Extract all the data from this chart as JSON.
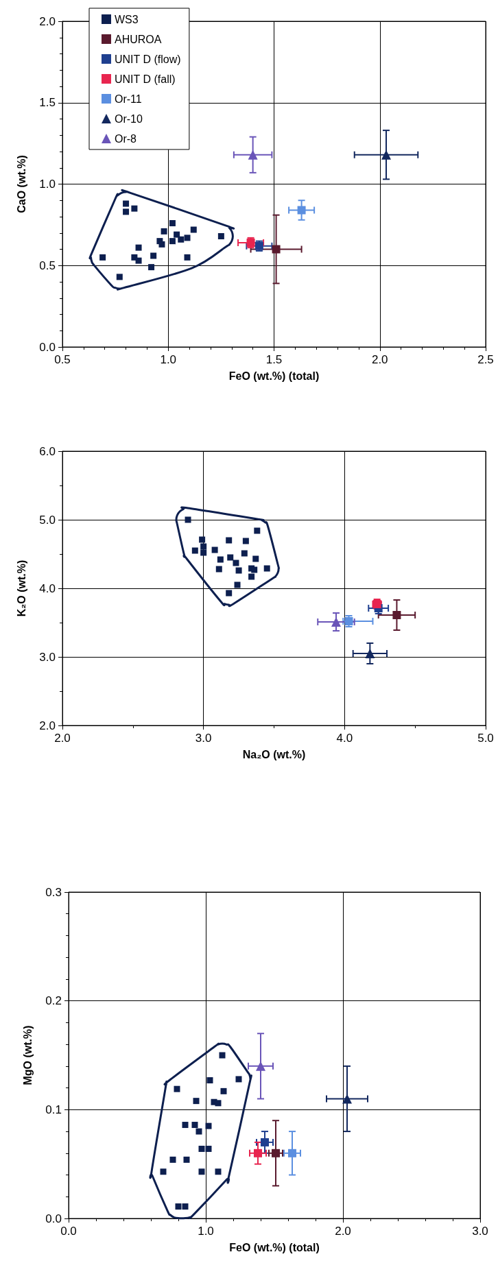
{
  "chart_data": [
    {
      "type": "scatter",
      "xlabel": "FeO (wt.%) (total)",
      "ylabel": "CaO (wt.%)",
      "legend": "top left",
      "grid": true,
      "xlim": [
        0.5,
        2.5
      ],
      "ylim": [
        0,
        2
      ],
      "xticks": [
        {
          "value": 0.5,
          "label": "0.5"
        },
        {
          "value": 0.6,
          "label": null
        },
        {
          "value": 0.7,
          "label": null
        },
        {
          "value": 0.8,
          "label": null
        },
        {
          "value": 0.9,
          "label": null
        },
        {
          "value": 1,
          "label": "1.0"
        },
        {
          "value": 1.1,
          "label": null
        },
        {
          "value": 1.2,
          "label": null
        },
        {
          "value": 1.3,
          "label": null
        },
        {
          "value": 1.4,
          "label": null
        },
        {
          "value": 1.5,
          "label": "1.5"
        },
        {
          "value": 1.6,
          "label": null
        },
        {
          "value": 1.7,
          "label": null
        },
        {
          "value": 1.8,
          "label": null
        },
        {
          "value": 1.9,
          "label": null
        },
        {
          "value": 2,
          "label": "2.0"
        },
        {
          "value": 2.1,
          "label": null
        },
        {
          "value": 2.2,
          "label": null
        },
        {
          "value": 2.3,
          "label": null
        },
        {
          "value": 2.4,
          "label": null
        },
        {
          "value": 2.5,
          "label": "2.5"
        }
      ],
      "yticks": [
        {
          "value": 0,
          "label": "0.0"
        },
        {
          "value": 0.1,
          "label": null
        },
        {
          "value": 0.2,
          "label": null
        },
        {
          "value": 0.3,
          "label": null
        },
        {
          "value": 0.4,
          "label": null
        },
        {
          "value": 0.5,
          "label": "0.5"
        },
        {
          "value": 0.6,
          "label": null
        },
        {
          "value": 0.7,
          "label": null
        },
        {
          "value": 0.8,
          "label": null
        },
        {
          "value": 0.9,
          "label": null
        },
        {
          "value": 1,
          "label": "1.0"
        },
        {
          "value": 1.1,
          "label": null
        },
        {
          "value": 1.2,
          "label": null
        },
        {
          "value": 1.3,
          "label": null
        },
        {
          "value": 1.4,
          "label": null
        },
        {
          "value": 1.5,
          "label": "1.5"
        },
        {
          "value": 1.6,
          "label": null
        },
        {
          "value": 1.7,
          "label": null
        },
        {
          "value": 1.8,
          "label": null
        },
        {
          "value": 1.9,
          "label": null
        },
        {
          "value": 2,
          "label": "2.0"
        }
      ],
      "series": [
        {
          "name": "WS3",
          "color": "#0d1f4f",
          "marker": "square",
          "x": [
            0.8,
            0.8,
            0.84,
            0.69,
            0.77,
            0.86,
            0.84,
            0.86,
            0.93,
            0.92,
            0.98,
            0.96,
            0.97,
            1.02,
            1.04,
            1.02,
            1.06,
            1.09,
            1.12,
            1.09,
            1.25
          ],
          "values": [
            0.88,
            0.83,
            0.85,
            0.55,
            0.43,
            0.61,
            0.55,
            0.53,
            0.56,
            0.49,
            0.71,
            0.65,
            0.63,
            0.76,
            0.69,
            0.65,
            0.66,
            0.67,
            0.72,
            0.55,
            0.68
          ]
        },
        {
          "name": "AHUROA",
          "color": "#5a1a2e",
          "marker": "square",
          "x": [
            1.51
          ],
          "values": [
            0.6
          ],
          "errors": [
            0.21
          ],
          "xerrors": [
            0.12
          ]
        },
        {
          "name": "UNIT D (flow)",
          "color": "#1f3f8f",
          "marker": "square",
          "x": [
            1.43
          ],
          "values": [
            0.62
          ],
          "errors": [
            0.03
          ],
          "xerrors": [
            0.06
          ]
        },
        {
          "name": "UNIT D (fall)",
          "color": "#e8254f",
          "marker": "square",
          "x": [
            1.39
          ],
          "values": [
            0.64
          ],
          "errors": [
            0.03
          ],
          "xerrors": [
            0.06
          ]
        },
        {
          "name": "Or-11",
          "color": "#5b8fe0",
          "marker": "square",
          "x": [
            1.63
          ],
          "values": [
            0.84
          ],
          "errors": [
            0.06
          ],
          "xerrors": [
            0.06
          ]
        },
        {
          "name": "Or-10",
          "color": "#13285e",
          "marker": "triangle",
          "x": [
            2.03
          ],
          "values": [
            1.18
          ],
          "errors": [
            0.15
          ],
          "xerrors": [
            0.15
          ]
        },
        {
          "name": "Or-8",
          "color": "#6a55b8",
          "marker": "triangle",
          "x": [
            1.4
          ],
          "values": [
            1.18
          ],
          "errors": [
            0.11
          ],
          "xerrors": [
            0.09
          ]
        }
      ]
    },
    {
      "type": "scatter",
      "xlabel": "Na₂O (wt.%)",
      "ylabel": "K₂O (wt.%)",
      "grid": true,
      "xlim": [
        2,
        5
      ],
      "ylim": [
        2,
        6
      ],
      "xticks": [
        {
          "value": 2,
          "label": "2.0"
        },
        {
          "value": 2.5,
          "label": null
        },
        {
          "value": 3,
          "label": "3.0"
        },
        {
          "value": 3.5,
          "label": null
        },
        {
          "value": 4,
          "label": "4.0"
        },
        {
          "value": 4.5,
          "label": null
        },
        {
          "value": 5,
          "label": "5.0"
        }
      ],
      "yticks": [
        {
          "value": 2,
          "label": "2.0"
        },
        {
          "value": 2.5,
          "label": null
        },
        {
          "value": 3,
          "label": "3.0"
        },
        {
          "value": 3.5,
          "label": null
        },
        {
          "value": 4,
          "label": "4.0"
        },
        {
          "value": 4.5,
          "label": null
        },
        {
          "value": 5,
          "label": "5.0"
        },
        {
          "value": 5.5,
          "label": null
        },
        {
          "value": 6,
          "label": "6.0"
        }
      ],
      "series": [
        {
          "color": "#0d1f4f",
          "marker": "square",
          "x": [
            2.89,
            3.38,
            2.99,
            3.18,
            3.3,
            3.0,
            2.94,
            3.0,
            3.08,
            3.29,
            3.12,
            3.19,
            3.23,
            3.37,
            3.11,
            3.25,
            3.34,
            3.36,
            3.45,
            3.34,
            3.24,
            3.18
          ],
          "values": [
            5.0,
            4.84,
            4.71,
            4.7,
            4.69,
            4.61,
            4.55,
            4.52,
            4.56,
            4.51,
            4.42,
            4.45,
            4.37,
            4.43,
            4.28,
            4.26,
            4.29,
            4.27,
            4.29,
            4.17,
            4.05,
            3.93
          ]
        },
        {
          "color": "#5a1a2e",
          "marker": "square",
          "x": [
            4.37
          ],
          "values": [
            3.61
          ],
          "errors": [
            0.22
          ],
          "xerrors": [
            0.13
          ]
        },
        {
          "color": "#1f3f8f",
          "marker": "square",
          "x": [
            4.24
          ],
          "values": [
            3.71
          ],
          "errors": [
            0.08
          ],
          "xerrors": [
            0.07
          ]
        },
        {
          "color": "#e8254f",
          "marker": "square",
          "x": [
            4.23
          ],
          "values": [
            3.77
          ],
          "errors": [
            0.07
          ],
          "xerrors": [
            0.03
          ]
        },
        {
          "color": "#5b8fe0",
          "marker": "square",
          "x": [
            4.03
          ],
          "values": [
            3.52
          ],
          "errors": [
            0.08
          ],
          "xerrors": [
            [
              3.99,
              4.2
            ]
          ]
        },
        {
          "color": "#13285e",
          "marker": "triangle",
          "x": [
            4.18
          ],
          "values": [
            3.05
          ],
          "errors": [
            0.15
          ],
          "xerrors": [
            0.12
          ]
        },
        {
          "color": "#6a55b8",
          "marker": "triangle",
          "x": [
            3.94
          ],
          "values": [
            3.51
          ],
          "errors": [
            0.13
          ],
          "xerrors": [
            0.13
          ]
        }
      ]
    },
    {
      "type": "scatter",
      "xlabel": "FeO (wt.%) (total)",
      "ylabel": "MgO (wt.%)",
      "grid": true,
      "xlim": [
        0,
        3
      ],
      "ylim": [
        0,
        0.3
      ],
      "xticks": [
        {
          "value": 0,
          "label": "0.0"
        },
        {
          "value": 0.2,
          "label": null
        },
        {
          "value": 0.4,
          "label": null
        },
        {
          "value": 0.6,
          "label": null
        },
        {
          "value": 0.8,
          "label": null
        },
        {
          "value": 1,
          "label": "1.0"
        },
        {
          "value": 1.2,
          "label": null
        },
        {
          "value": 1.4,
          "label": null
        },
        {
          "value": 1.6,
          "label": null
        },
        {
          "value": 1.8,
          "label": null
        },
        {
          "value": 2,
          "label": "2.0"
        },
        {
          "value": 2.2,
          "label": null
        },
        {
          "value": 2.4,
          "label": null
        },
        {
          "value": 2.6,
          "label": null
        },
        {
          "value": 2.8,
          "label": null
        },
        {
          "value": 3,
          "label": "3.0"
        }
      ],
      "yticks": [
        {
          "value": 0,
          "label": "0.0"
        },
        {
          "value": 0.02,
          "label": null
        },
        {
          "value": 0.04,
          "label": null
        },
        {
          "value": 0.06,
          "label": null
        },
        {
          "value": 0.08,
          "label": null
        },
        {
          "value": 0.1,
          "label": "0.1"
        },
        {
          "value": 0.12,
          "label": null
        },
        {
          "value": 0.14,
          "label": null
        },
        {
          "value": 0.16,
          "label": null
        },
        {
          "value": 0.18,
          "label": null
        },
        {
          "value": 0.2,
          "label": "0.2"
        },
        {
          "value": 0.22,
          "label": null
        },
        {
          "value": 0.24,
          "label": null
        },
        {
          "value": 0.26,
          "label": null
        },
        {
          "value": 0.28,
          "label": null
        },
        {
          "value": 0.3,
          "label": "0.3"
        }
      ],
      "series": [
        {
          "color": "#0d1f4f",
          "marker": "square",
          "x": [
            1.12,
            1.24,
            1.03,
            0.79,
            1.13,
            0.93,
            1.06,
            1.09,
            0.85,
            0.92,
            0.95,
            1.02,
            0.97,
            1.02,
            0.76,
            0.86,
            0.69,
            0.97,
            1.09,
            0.8,
            0.85
          ],
          "values": [
            0.15,
            0.128,
            0.127,
            0.119,
            0.117,
            0.108,
            0.107,
            0.106,
            0.086,
            0.086,
            0.08,
            0.085,
            0.064,
            0.064,
            0.054,
            0.054,
            0.043,
            0.043,
            0.043,
            0.011,
            0.011
          ]
        },
        {
          "color": "#5a1a2e",
          "marker": "square",
          "x": [
            1.51
          ],
          "values": [
            0.06
          ],
          "errors": [
            0.03
          ],
          "xerrors": [
            0.05
          ]
        },
        {
          "color": "#1f3f8f",
          "marker": "square",
          "x": [
            1.43
          ],
          "values": [
            0.07
          ],
          "errors": [
            0.01
          ],
          "xerrors": [
            0.06
          ]
        },
        {
          "color": "#e8254f",
          "marker": "square",
          "x": [
            1.38
          ],
          "values": [
            0.06
          ],
          "errors": [
            0.01
          ],
          "xerrors": [
            0.06
          ]
        },
        {
          "color": "#5b8fe0",
          "marker": "square",
          "x": [
            1.63
          ],
          "values": [
            0.06
          ],
          "errors": [
            0.02
          ],
          "xerrors": [
            0.06
          ]
        },
        {
          "color": "#13285e",
          "marker": "triangle",
          "x": [
            2.03
          ],
          "values": [
            0.11
          ],
          "errors": [
            0.03
          ],
          "xerrors": [
            0.15
          ]
        },
        {
          "color": "#6a55b8",
          "marker": "triangle",
          "x": [
            1.4
          ],
          "values": [
            0.14
          ],
          "errors": [
            0.03
          ],
          "xerrors": [
            0.09
          ]
        }
      ]
    }
  ]
}
